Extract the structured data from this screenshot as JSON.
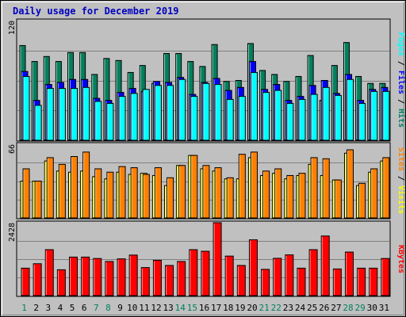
{
  "title": "Daily usage for December 2019",
  "colors": {
    "hits": "#00805c",
    "files": "#0000ff",
    "pages": "#00ffff",
    "visits": "#ffff00",
    "sites": "#ff8000",
    "kbytes": "#ff0000",
    "weekday_label": "#000000",
    "weekend_label": "#00805c",
    "panel_bg": "#c0c0c0",
    "gridline": "#808080"
  },
  "chart_data": [
    {
      "type": "bar",
      "panel": "hits-files-pages",
      "ymax_label": "120",
      "ylim": [
        0,
        120
      ],
      "categories": [
        "1",
        "2",
        "3",
        "4",
        "5",
        "6",
        "7",
        "8",
        "9",
        "10",
        "11",
        "12",
        "13",
        "14",
        "15",
        "16",
        "17",
        "18",
        "19",
        "20",
        "21",
        "22",
        "23",
        "24",
        "25",
        "26",
        "27",
        "28",
        "29",
        "30",
        "31"
      ],
      "weekend_days": [
        "1",
        "7",
        "8",
        "14",
        "15",
        "21",
        "22",
        "28",
        "29"
      ],
      "legend": [
        "Pages",
        "Files",
        "Hits"
      ],
      "series": [
        {
          "name": "Hits",
          "values": [
            95,
            79,
            84,
            79,
            88,
            88,
            66,
            82,
            80,
            68,
            75,
            57,
            87,
            87,
            79,
            74,
            96,
            59,
            60,
            97,
            70,
            66,
            59,
            64,
            85,
            40,
            75,
            98,
            64,
            57,
            57
          ]
        },
        {
          "name": "Files",
          "values": [
            69,
            40,
            56,
            58,
            61,
            61,
            42,
            40,
            48,
            52,
            49,
            59,
            58,
            63,
            46,
            58,
            62,
            50,
            53,
            79,
            51,
            56,
            40,
            44,
            55,
            60,
            47,
            66,
            40,
            51,
            53
          ]
        },
        {
          "name": "Pages",
          "values": [
            64,
            35,
            52,
            52,
            52,
            53,
            39,
            37,
            44,
            47,
            51,
            55,
            55,
            61,
            44,
            57,
            56,
            41,
            44,
            68,
            48,
            50,
            37,
            41,
            46,
            53,
            45,
            61,
            37,
            49,
            49
          ]
        }
      ]
    },
    {
      "type": "bar",
      "panel": "sites-visits",
      "ymax_label": "66",
      "ylim": [
        0,
        66
      ],
      "categories": [
        "1",
        "2",
        "3",
        "4",
        "5",
        "6",
        "7",
        "8",
        "9",
        "10",
        "11",
        "12",
        "13",
        "14",
        "15",
        "16",
        "17",
        "18",
        "19",
        "20",
        "21",
        "22",
        "23",
        "24",
        "25",
        "26",
        "27",
        "28",
        "29",
        "30",
        "31"
      ],
      "legend": [
        "Sites",
        "Visits"
      ],
      "series": [
        {
          "name": "Visits",
          "values": [
            33,
            33,
            51,
            42,
            41,
            42,
            37,
            35,
            41,
            39,
            40,
            38,
            29,
            47,
            56,
            44,
            42,
            35,
            35,
            54,
            38,
            40,
            35,
            38,
            48,
            38,
            34,
            58,
            29,
            41,
            51
          ]
        },
        {
          "name": "Sites",
          "values": [
            44,
            33,
            54,
            48,
            55,
            59,
            44,
            41,
            46,
            45,
            39,
            45,
            36,
            47,
            56,
            47,
            45,
            36,
            57,
            59,
            42,
            44,
            38,
            40,
            54,
            53,
            34,
            61,
            31,
            44,
            54
          ]
        }
      ]
    },
    {
      "type": "bar",
      "panel": "kbytes",
      "ymax_label": "2428",
      "ylim": [
        0,
        2428
      ],
      "categories": [
        "1",
        "2",
        "3",
        "4",
        "5",
        "6",
        "7",
        "8",
        "9",
        "10",
        "11",
        "12",
        "13",
        "14",
        "15",
        "16",
        "17",
        "18",
        "19",
        "20",
        "21",
        "22",
        "23",
        "24",
        "25",
        "26",
        "27",
        "28",
        "29",
        "30",
        "31"
      ],
      "legend": [
        "KBytes"
      ],
      "series": [
        {
          "name": "KBytes",
          "values": [
            914,
            1062,
            1530,
            861,
            1283,
            1283,
            1236,
            1137,
            1224,
            1350,
            934,
            1176,
            1004,
            1137,
            1530,
            1477,
            2428,
            1316,
            1004,
            1858,
            874,
            1242,
            1356,
            914,
            1530,
            1985,
            888,
            1450,
            914,
            914,
            1236
          ]
        }
      ]
    }
  ]
}
